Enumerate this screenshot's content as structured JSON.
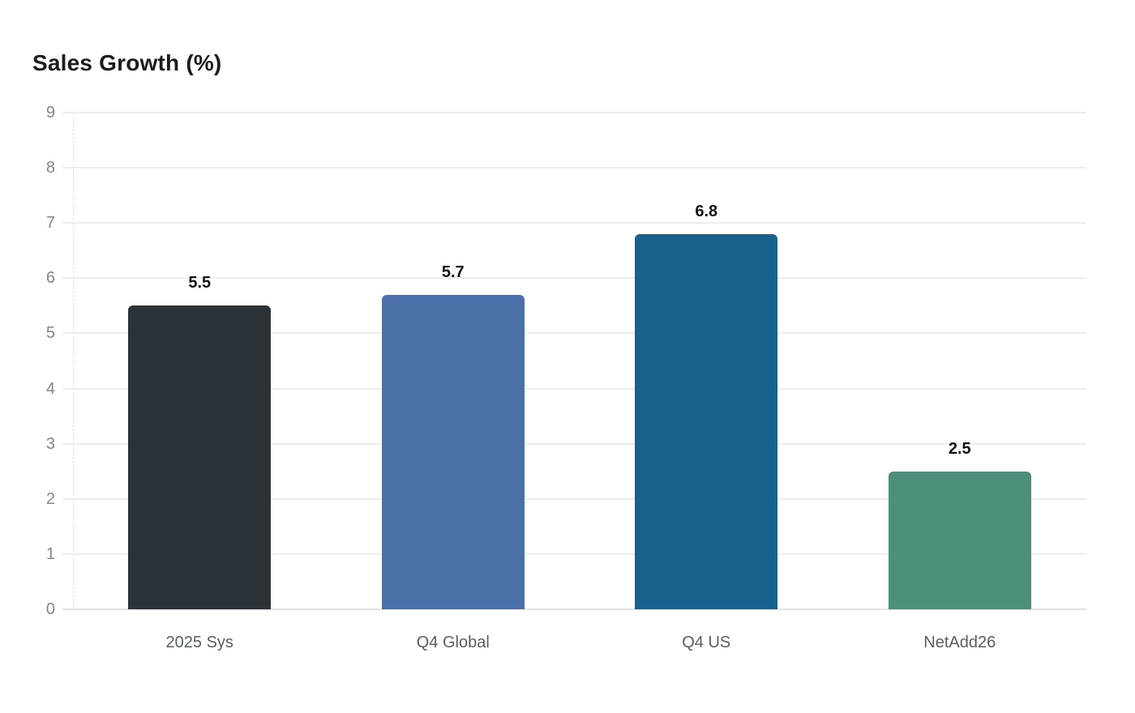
{
  "chart_data": {
    "type": "bar",
    "title": "Sales Growth (%)",
    "categories": [
      "2025 Sys",
      "Q4 Global",
      "Q4 US",
      "NetAdd26"
    ],
    "values": [
      5.5,
      5.7,
      6.8,
      2.5
    ],
    "value_labels": [
      "5.5",
      "5.7",
      "6.8",
      "2.5"
    ],
    "bar_colors": [
      "#2b3338",
      "#4b70a9",
      "#17618e",
      "#4d8e7d"
    ],
    "ylim": [
      0,
      9
    ],
    "yticks": [
      0,
      1,
      2,
      3,
      4,
      5,
      6,
      7,
      8,
      9
    ],
    "xlabel": "",
    "ylabel": "",
    "grid": "horizontal",
    "legend_position": "none"
  },
  "colors": {
    "background": "#ffffff",
    "grid_line": "#ededed",
    "baseline": "#e2e2e2",
    "axis_line": "#e3e3e3",
    "title_text": "#1c1c1c",
    "tick_text": "#858585",
    "category_text": "#555f66",
    "value_text": "#111111"
  }
}
